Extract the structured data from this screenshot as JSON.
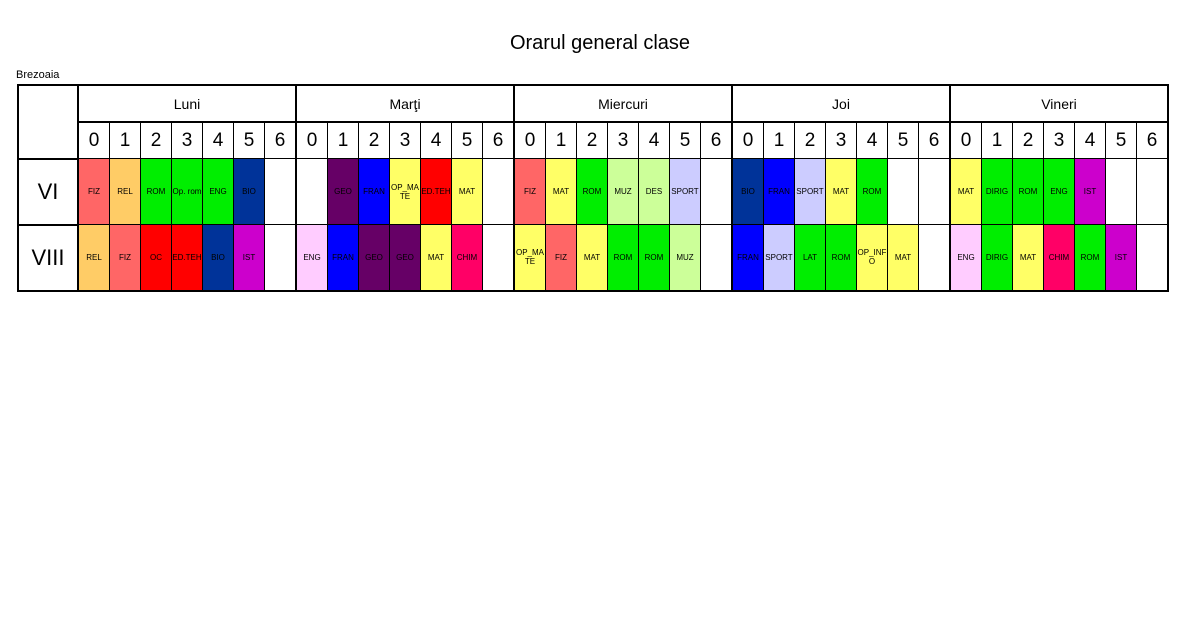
{
  "title": "Orarul general clase",
  "school": "Brezoaia",
  "slots": [
    "0",
    "1",
    "2",
    "3",
    "4",
    "5",
    "6"
  ],
  "days": [
    "Luni",
    "Marţi",
    "Miercuri",
    "Joi",
    "Vineri"
  ],
  "colors": {
    "FIZ": "#ff6666",
    "REL": "#ffcc66",
    "ROM": "#00ee00",
    "Op. rom": "#00ee00",
    "ENG": "#00ee00",
    "BIO": "#003399",
    "GEO": "#660066",
    "FRAN": "#0000ff",
    "OP_MATE": "#ffff66",
    "ED.TEH": "#ff0000",
    "MAT": "#ffff66",
    "MUZ": "#ccff99",
    "DES": "#ccff99",
    "SPORT": "#ccccff",
    "DIRIG": "#00ee00",
    "IST": "#cc00cc",
    "OC": "#ff0000",
    "CHIM": "#ff0066",
    "LAT": "#00ee00",
    "OP_INFO": "#ffff66",
    "ENG8": "#ffccff"
  },
  "classes": [
    {
      "name": "VI",
      "days": [
        [
          "FIZ",
          "REL",
          "ROM",
          "Op. rom",
          "ENG",
          "BIO",
          ""
        ],
        [
          "",
          "GEO",
          "FRAN",
          "OP_MATE",
          "ED.TEH",
          "MAT",
          ""
        ],
        [
          "FIZ",
          "MAT",
          "ROM",
          "MUZ",
          "DES",
          "SPORT",
          ""
        ],
        [
          "BIO",
          "FRAN",
          "SPORT",
          "MAT",
          "ROM",
          "",
          ""
        ],
        [
          "MAT",
          "DIRIG",
          "ROM",
          "ENG",
          "IST",
          "",
          ""
        ]
      ]
    },
    {
      "name": "VIII",
      "days": [
        [
          "REL",
          "FIZ",
          "OC",
          "ED.TEH",
          "BIO",
          "IST",
          ""
        ],
        [
          "ENG",
          "FRAN",
          "GEO",
          "GEO",
          "MAT",
          "CHIM",
          ""
        ],
        [
          "OP_MATE",
          "FIZ",
          "MAT",
          "ROM",
          "ROM",
          "MUZ",
          ""
        ],
        [
          "FRAN",
          "SPORT",
          "LAT",
          "ROM",
          "OP_INFO",
          "MAT",
          ""
        ],
        [
          "ENG",
          "DIRIG",
          "MAT",
          "CHIM",
          "ROM",
          "IST",
          ""
        ]
      ]
    }
  ]
}
